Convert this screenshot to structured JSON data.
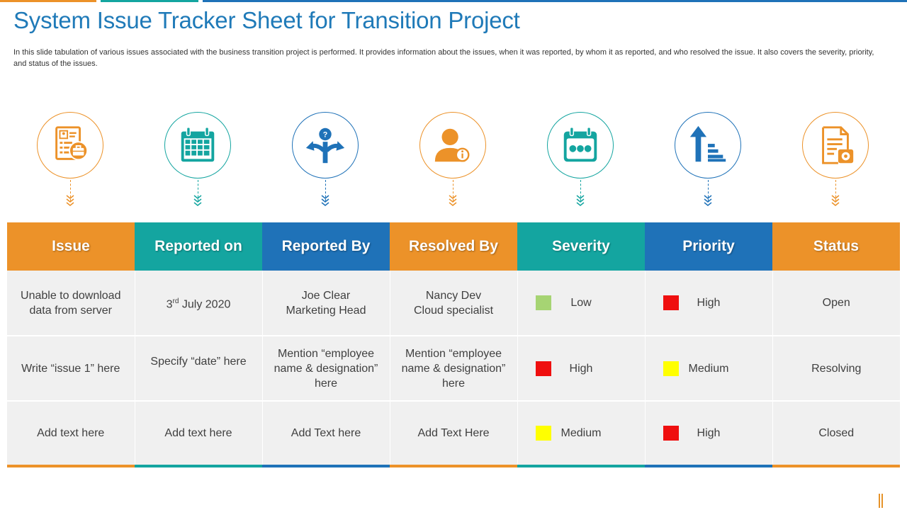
{
  "colors": {
    "orange": "#ec9229",
    "teal": "#14a5a0",
    "blue": "#1f72b8",
    "title_blue": "#1f7ab8",
    "low_green": "#a6d473",
    "high_red": "#ef0f0f",
    "medium_yellow": "#ffff00"
  },
  "title": "System Issue Tracker Sheet for Transition Project",
  "description": "In this slide tabulation of various issues associated with the business transition project is performed. It provides information about the issues, when it was reported, by whom it as reported, and who resolved the issue. It also covers the severity, priority, and status of the issues.",
  "icons": [
    {
      "name": "issue-document-icon",
      "color": "orange"
    },
    {
      "name": "calendar-grid-icon",
      "color": "teal"
    },
    {
      "name": "person-direction-icon",
      "color": "blue"
    },
    {
      "name": "person-info-icon",
      "color": "orange"
    },
    {
      "name": "calendar-dots-icon",
      "color": "teal"
    },
    {
      "name": "priority-arrow-icon",
      "color": "blue"
    },
    {
      "name": "document-gear-icon",
      "color": "orange"
    }
  ],
  "table": {
    "headers": [
      "Issue",
      "Reported on",
      "Reported By",
      "Resolved By",
      "Severity",
      "Priority",
      "Status"
    ],
    "rows": [
      {
        "issue": "Unable to download data from server",
        "reported_on_day": "3",
        "reported_on_suffix": "rd",
        "reported_on_rest": " July 2020",
        "reported_by": "Joe Clear\nMarketing Head",
        "resolved_by": "Nancy Dev\nCloud specialist",
        "severity": "Low",
        "priority": "High",
        "status": "Open"
      },
      {
        "issue": "Write “issue 1” here",
        "reported_on": "Specify “date” here",
        "reported_by": "Mention “employee name & designation” here",
        "resolved_by": "Mention “employee name & designation” here",
        "severity": "High",
        "priority": "Medium",
        "status": "Resolving"
      },
      {
        "issue": "Add text here",
        "reported_on": "Add text here",
        "reported_by": "Add Text here",
        "resolved_by": "Add Text Here",
        "severity": "Medium",
        "priority": "High",
        "status": "Closed"
      }
    ]
  }
}
